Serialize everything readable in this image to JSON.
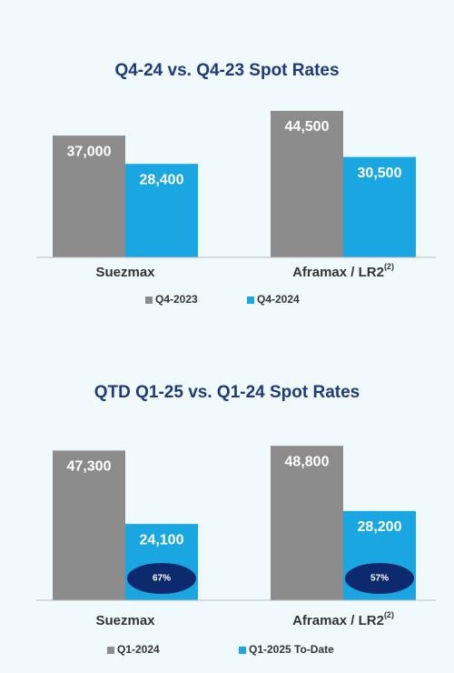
{
  "chart_data": [
    {
      "type": "bar",
      "title": "Q4-24 vs. Q4-23 Spot Rates",
      "categories": [
        "Suezmax",
        "Aframax / LR2"
      ],
      "category_notes": [
        null,
        "(2)"
      ],
      "series": [
        {
          "name": "Q4-2023",
          "color": "#8c8c8c",
          "values": [
            37000,
            44500
          ],
          "value_labels": [
            "37,000",
            "44,500"
          ]
        },
        {
          "name": "Q4-2024",
          "color": "#1aa6e0",
          "values": [
            28400,
            30500
          ],
          "value_labels": [
            "28,400",
            "30,500"
          ]
        }
      ],
      "ylim": [
        0,
        50000
      ]
    },
    {
      "type": "bar",
      "title": "QTD Q1-25 vs. Q1-24 Spot Rates",
      "categories": [
        "Suezmax",
        "Aframax / LR2"
      ],
      "category_notes": [
        null,
        "(2)"
      ],
      "series": [
        {
          "name": "Q1-2024",
          "color": "#8c8c8c",
          "values": [
            47300,
            48800
          ],
          "value_labels": [
            "47,300",
            "48,800"
          ]
        },
        {
          "name": "Q1-2025 To-Date",
          "color": "#1aa6e0",
          "values": [
            24100,
            28200
          ],
          "value_labels": [
            "24,100",
            "28,200"
          ],
          "badges": [
            "67%",
            "57%"
          ]
        }
      ],
      "ylim": [
        0,
        50000
      ]
    }
  ]
}
